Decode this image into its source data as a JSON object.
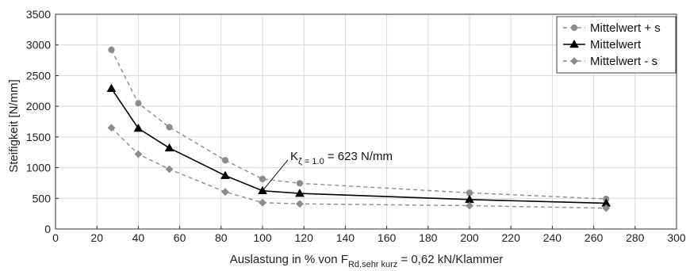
{
  "chart_data": {
    "type": "line",
    "xlim": [
      0,
      300
    ],
    "ylim": [
      0,
      3500
    ],
    "xticks": [
      0,
      20,
      40,
      60,
      80,
      100,
      120,
      140,
      160,
      180,
      200,
      220,
      240,
      260,
      280,
      300
    ],
    "yticks": [
      0,
      500,
      1000,
      1500,
      2000,
      2500,
      3000,
      3500
    ],
    "grid": true,
    "legend_position": "top-right",
    "ylabel": "Steifigkeit [N/mm]",
    "xlabel": {
      "prefix": "Auslastung in % von F",
      "subscript": "Rd.sehr kurz",
      "suffix": " = 0,62 kN/Klammer"
    },
    "x": [
      27,
      40,
      55,
      82,
      100,
      118,
      200,
      266
    ],
    "series": [
      {
        "name": "Mittelwert + s",
        "values": [
          2920,
          2050,
          1660,
          1120,
          815,
          745,
          590,
          490
        ],
        "color": "#8c8c8c",
        "dash": true,
        "marker": "circle"
      },
      {
        "name": "Mittelwert",
        "values": [
          2290,
          1640,
          1320,
          870,
          623,
          580,
          480,
          420
        ],
        "color": "#000000",
        "dash": false,
        "marker": "triangle"
      },
      {
        "name": "Mittelwert - s",
        "values": [
          1650,
          1220,
          975,
          605,
          430,
          410,
          380,
          340
        ],
        "color": "#8c8c8c",
        "dash": true,
        "marker": "diamond"
      }
    ],
    "annotation": {
      "label_main": "K",
      "label_sub": "ζ = 1.0",
      "label_rest": " = 623 N/mm",
      "x": 100,
      "y": 623
    }
  }
}
